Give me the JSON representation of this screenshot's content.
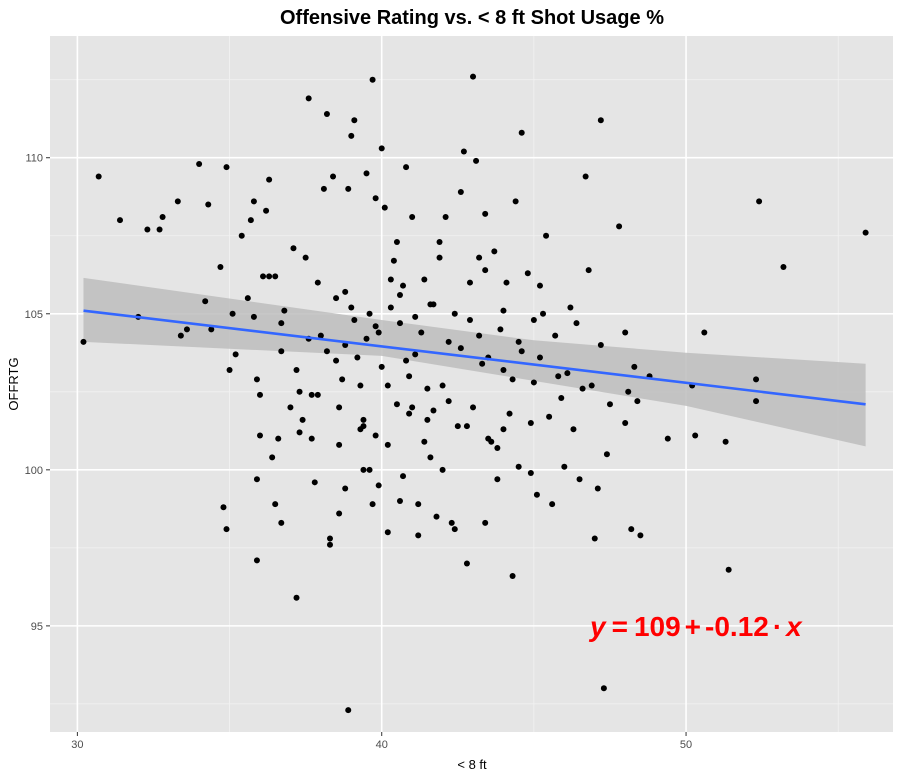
{
  "chart_data": {
    "type": "scatter",
    "title": "Offensive Rating vs. < 8 ft  Shot Usage %",
    "xlabel": "< 8 ft",
    "ylabel": "OFFRTG",
    "xlim": [
      29.1,
      56.8
    ],
    "ylim": [
      91.6,
      113.9
    ],
    "x_ticks": [
      30,
      40,
      50
    ],
    "y_ticks": [
      95,
      100,
      105,
      110
    ],
    "grid": true,
    "background": "#e5e5e5",
    "point_color": "#000000",
    "regression": {
      "intercept": 109,
      "slope": -0.12,
      "x_start": 30.2,
      "y_start": 105.1,
      "x_end": 55.9,
      "y_end": 102.1,
      "color": "#3366ff",
      "band_color": "#bdbdbd",
      "band_upper": [
        [
          30.2,
          106.15
        ],
        [
          40,
          104.8
        ],
        [
          45,
          104.15
        ],
        [
          50,
          103.75
        ],
        [
          55.9,
          103.4
        ]
      ],
      "band_lower": [
        [
          55.9,
          100.75
        ],
        [
          50,
          102.05
        ],
        [
          45,
          102.85
        ],
        [
          40,
          103.65
        ],
        [
          30.2,
          104.1
        ]
      ]
    },
    "equation": {
      "y": "y",
      "eq": "=",
      "intercept": "109",
      "plus": "+",
      "slope": "-0.12",
      "dot": "·",
      "x": "x",
      "color": "#ff0000"
    },
    "points": [
      [
        30.2,
        104.1
      ],
      [
        30.7,
        109.4
      ],
      [
        31.4,
        108.0
      ],
      [
        32.0,
        104.9
      ],
      [
        32.3,
        107.7
      ],
      [
        32.7,
        107.7
      ],
      [
        32.8,
        108.1
      ],
      [
        33.3,
        108.6
      ],
      [
        33.4,
        104.3
      ],
      [
        33.6,
        104.5
      ],
      [
        34.0,
        109.8
      ],
      [
        34.2,
        105.4
      ],
      [
        34.3,
        108.5
      ],
      [
        34.4,
        104.5
      ],
      [
        34.7,
        106.5
      ],
      [
        34.8,
        98.8
      ],
      [
        34.9,
        98.1
      ],
      [
        34.9,
        109.7
      ],
      [
        35.0,
        103.2
      ],
      [
        35.1,
        105.0
      ],
      [
        35.2,
        103.7
      ],
      [
        35.4,
        107.5
      ],
      [
        35.6,
        105.5
      ],
      [
        35.7,
        108.0
      ],
      [
        35.8,
        104.9
      ],
      [
        35.8,
        108.6
      ],
      [
        35.9,
        99.7
      ],
      [
        35.9,
        97.1
      ],
      [
        36.0,
        101.1
      ],
      [
        36.0,
        102.4
      ],
      [
        36.1,
        106.2
      ],
      [
        36.2,
        108.3
      ],
      [
        36.3,
        109.3
      ],
      [
        36.3,
        106.2
      ],
      [
        36.5,
        98.9
      ],
      [
        36.5,
        106.2
      ],
      [
        36.6,
        101.0
      ],
      [
        36.7,
        104.7
      ],
      [
        36.7,
        98.3
      ],
      [
        36.8,
        105.1
      ],
      [
        37.0,
        102.0
      ],
      [
        37.1,
        107.1
      ],
      [
        37.2,
        103.2
      ],
      [
        37.2,
        95.9
      ],
      [
        37.3,
        102.5
      ],
      [
        37.4,
        101.6
      ],
      [
        37.5,
        106.8
      ],
      [
        37.6,
        104.2
      ],
      [
        37.6,
        111.9
      ],
      [
        37.7,
        102.4
      ],
      [
        37.7,
        101.0
      ],
      [
        37.8,
        99.6
      ],
      [
        37.9,
        102.4
      ],
      [
        38.0,
        104.3
      ],
      [
        38.1,
        109.0
      ],
      [
        38.2,
        103.8
      ],
      [
        38.2,
        111.4
      ],
      [
        38.3,
        97.8
      ],
      [
        38.3,
        97.6
      ],
      [
        38.4,
        109.4
      ],
      [
        38.5,
        103.5
      ],
      [
        38.6,
        100.8
      ],
      [
        38.6,
        98.6
      ],
      [
        38.7,
        102.9
      ],
      [
        38.8,
        105.7
      ],
      [
        38.8,
        104.0
      ],
      [
        38.9,
        109.0
      ],
      [
        39.0,
        110.7
      ],
      [
        39.0,
        105.2
      ],
      [
        39.1,
        111.2
      ],
      [
        39.1,
        104.8
      ],
      [
        39.3,
        101.3
      ],
      [
        39.3,
        102.7
      ],
      [
        39.4,
        101.6
      ],
      [
        39.4,
        101.4
      ],
      [
        39.5,
        104.2
      ],
      [
        39.5,
        109.5
      ],
      [
        39.6,
        105.0
      ],
      [
        39.6,
        100.0
      ],
      [
        39.7,
        98.9
      ],
      [
        39.7,
        112.5
      ],
      [
        39.8,
        108.7
      ],
      [
        39.8,
        101.1
      ],
      [
        39.9,
        104.4
      ],
      [
        40.0,
        110.3
      ],
      [
        40.0,
        103.3
      ],
      [
        40.1,
        108.4
      ],
      [
        40.2,
        102.7
      ],
      [
        40.2,
        98.0
      ],
      [
        40.3,
        105.2
      ],
      [
        40.3,
        106.1
      ],
      [
        40.4,
        106.7
      ],
      [
        40.5,
        102.1
      ],
      [
        40.6,
        99.0
      ],
      [
        40.6,
        104.7
      ],
      [
        40.7,
        99.8
      ],
      [
        40.7,
        105.9
      ],
      [
        40.8,
        109.7
      ],
      [
        40.9,
        103.0
      ],
      [
        40.9,
        101.8
      ],
      [
        41.0,
        102.0
      ],
      [
        41.0,
        108.1
      ],
      [
        41.1,
        103.7
      ],
      [
        41.2,
        97.9
      ],
      [
        41.3,
        104.4
      ],
      [
        41.4,
        100.9
      ],
      [
        41.5,
        101.6
      ],
      [
        41.5,
        102.6
      ],
      [
        41.6,
        105.3
      ],
      [
        41.7,
        101.9
      ],
      [
        41.7,
        105.3
      ],
      [
        41.8,
        98.5
      ],
      [
        41.9,
        106.8
      ],
      [
        42.0,
        100.0
      ],
      [
        42.1,
        108.1
      ],
      [
        42.2,
        102.2
      ],
      [
        42.3,
        98.3
      ],
      [
        42.4,
        105.0
      ],
      [
        42.5,
        101.4
      ],
      [
        42.6,
        103.9
      ],
      [
        42.7,
        110.2
      ],
      [
        42.8,
        97.0
      ],
      [
        42.8,
        101.4
      ],
      [
        42.9,
        104.8
      ],
      [
        43.0,
        102.0
      ],
      [
        43.0,
        112.6
      ],
      [
        43.1,
        109.9
      ],
      [
        43.2,
        106.8
      ],
      [
        43.3,
        103.4
      ],
      [
        43.4,
        106.4
      ],
      [
        43.4,
        108.2
      ],
      [
        43.5,
        101.0
      ],
      [
        43.6,
        100.9
      ],
      [
        43.7,
        107.0
      ],
      [
        43.8,
        99.7
      ],
      [
        43.9,
        104.5
      ],
      [
        44.0,
        101.3
      ],
      [
        44.0,
        103.2
      ],
      [
        44.1,
        106.0
      ],
      [
        44.2,
        101.8
      ],
      [
        44.3,
        102.9
      ],
      [
        44.4,
        108.6
      ],
      [
        44.5,
        104.1
      ],
      [
        44.5,
        100.1
      ],
      [
        44.6,
        103.8
      ],
      [
        44.8,
        106.3
      ],
      [
        44.9,
        101.5
      ],
      [
        45.0,
        104.8
      ],
      [
        45.0,
        102.8
      ],
      [
        45.1,
        99.2
      ],
      [
        45.2,
        103.6
      ],
      [
        45.3,
        105.0
      ],
      [
        45.4,
        107.5
      ],
      [
        45.5,
        101.7
      ],
      [
        45.6,
        98.9
      ],
      [
        45.7,
        104.3
      ],
      [
        45.8,
        103.0
      ],
      [
        46.0,
        100.1
      ],
      [
        46.2,
        105.2
      ],
      [
        46.4,
        104.7
      ],
      [
        46.5,
        99.7
      ],
      [
        46.6,
        102.6
      ],
      [
        46.7,
        109.4
      ],
      [
        46.8,
        106.4
      ],
      [
        47.0,
        97.8
      ],
      [
        47.2,
        104.0
      ],
      [
        47.5,
        102.1
      ],
      [
        47.8,
        107.8
      ],
      [
        48.0,
        104.4
      ],
      [
        48.2,
        98.1
      ],
      [
        48.5,
        97.9
      ],
      [
        48.0,
        101.5
      ],
      [
        47.3,
        93.0
      ],
      [
        47.2,
        111.2
      ],
      [
        48.1,
        102.5
      ],
      [
        48.3,
        103.3
      ],
      [
        49.4,
        101.0
      ],
      [
        50.2,
        102.7
      ],
      [
        50.3,
        101.1
      ],
      [
        50.6,
        104.4
      ],
      [
        51.3,
        100.9
      ],
      [
        51.4,
        96.8
      ],
      [
        52.3,
        102.9
      ],
      [
        52.4,
        108.6
      ],
      [
        52.3,
        102.2
      ],
      [
        53.2,
        106.5
      ],
      [
        55.9,
        107.6
      ],
      [
        38.9,
        92.3
      ],
      [
        44.3,
        96.6
      ],
      [
        43.4,
        98.3
      ],
      [
        42.4,
        98.1
      ],
      [
        41.2,
        98.9
      ],
      [
        39.4,
        100.0
      ],
      [
        38.8,
        99.4
      ],
      [
        44.6,
        110.8
      ],
      [
        42.6,
        108.9
      ],
      [
        41.9,
        107.3
      ],
      [
        41.4,
        106.1
      ],
      [
        40.5,
        107.3
      ],
      [
        43.2,
        104.3
      ],
      [
        44.0,
        105.1
      ],
      [
        45.2,
        105.9
      ],
      [
        46.1,
        103.1
      ],
      [
        46.9,
        102.7
      ],
      [
        47.4,
        100.5
      ],
      [
        48.4,
        102.2
      ],
      [
        42.0,
        102.7
      ],
      [
        40.8,
        103.5
      ],
      [
        39.2,
        103.6
      ],
      [
        38.5,
        105.5
      ],
      [
        37.9,
        106.0
      ],
      [
        36.7,
        103.8
      ],
      [
        35.9,
        102.9
      ],
      [
        44.9,
        99.9
      ],
      [
        43.8,
        100.7
      ],
      [
        41.6,
        100.4
      ],
      [
        40.2,
        100.8
      ],
      [
        39.9,
        99.5
      ],
      [
        42.9,
        106.0
      ],
      [
        43.5,
        103.6
      ],
      [
        42.2,
        104.1
      ],
      [
        41.1,
        104.9
      ],
      [
        40.6,
        105.6
      ],
      [
        39.8,
        104.6
      ],
      [
        38.6,
        102.0
      ],
      [
        37.3,
        101.2
      ],
      [
        36.4,
        100.4
      ],
      [
        45.9,
        102.3
      ],
      [
        46.3,
        101.3
      ],
      [
        47.1,
        99.4
      ],
      [
        48.8,
        103.0
      ]
    ]
  }
}
